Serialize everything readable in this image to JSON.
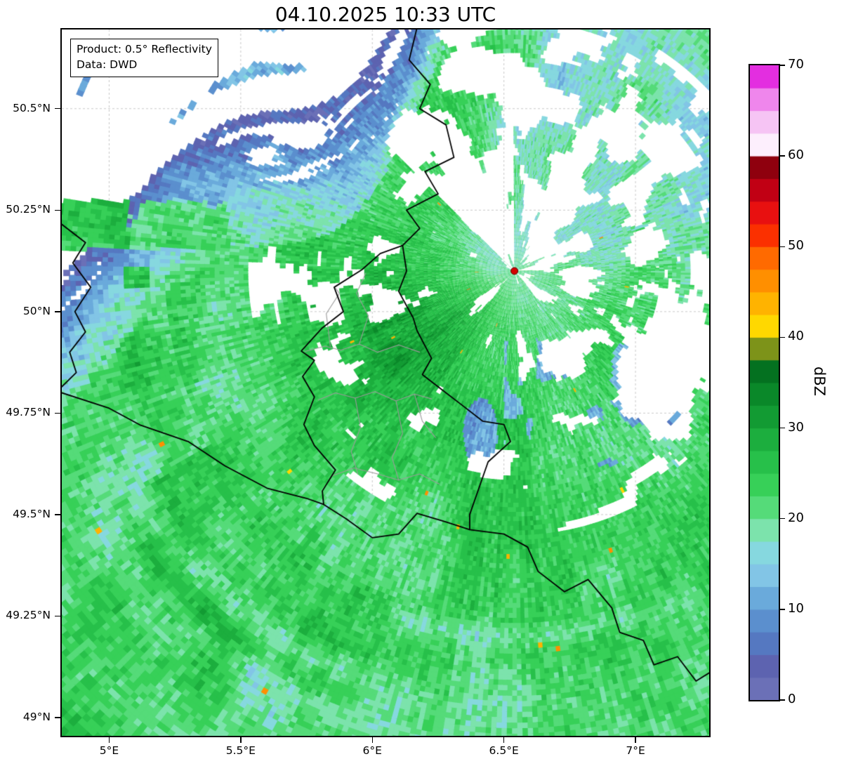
{
  "title": "04.10.2025 10:33 UTC",
  "annotation": {
    "product": "Product: 0.5° Reflectivity",
    "source": "Data: DWD"
  },
  "axes": {
    "lat_ticks": [
      {
        "label": "50.5°N",
        "deg": 50.5
      },
      {
        "label": "50.25°N",
        "deg": 50.25
      },
      {
        "label": "50°N",
        "deg": 50.0
      },
      {
        "label": "49.75°N",
        "deg": 49.75
      },
      {
        "label": "49.5°N",
        "deg": 49.5
      },
      {
        "label": "49.25°N",
        "deg": 49.25
      },
      {
        "label": "49°N",
        "deg": 49.0
      }
    ],
    "lon_ticks": [
      {
        "label": "5°E",
        "deg": 5.0
      },
      {
        "label": "5.5°E",
        "deg": 5.5
      },
      {
        "label": "6°E",
        "deg": 6.0
      },
      {
        "label": "6.5°E",
        "deg": 6.5
      },
      {
        "label": "7°E",
        "deg": 7.0
      }
    ],
    "extent": {
      "lon_min": 4.82,
      "lon_max": 7.28,
      "lat_min": 48.955,
      "lat_max": 50.695
    }
  },
  "colorbar": {
    "label": "dBZ",
    "unit_min": 0,
    "unit_max": 70,
    "step": 2.5,
    "tick_values": [
      0,
      10,
      20,
      30,
      40,
      50,
      60,
      70
    ],
    "colors": [
      "#6b70b7",
      "#5d63b0",
      "#5578c1",
      "#5b8fce",
      "#6aaadb",
      "#82c5e6",
      "#86d8df",
      "#7ce3ac",
      "#55db79",
      "#37d058",
      "#27c04a",
      "#1cae3e",
      "#129b33",
      "#0a8829",
      "#047120",
      "#7d9319",
      "#ffd800",
      "#ffb300",
      "#ff8f00",
      "#ff6a00",
      "#fb3000",
      "#e81010",
      "#c10014",
      "#8f000e",
      "#fdeffd",
      "#f6c4f4",
      "#ef86ec",
      "#e32ee0"
    ]
  },
  "radar_site": {
    "lon": 6.54,
    "lat": 50.1,
    "marker_color": "#d40000"
  },
  "map": {
    "background": "#ffffff",
    "grid_color": "#c9c9c9",
    "border_color": "#000000",
    "district_color": "#9a9a9a",
    "country_borders": [
      [
        [
          6.17,
          50.7
        ],
        [
          6.14,
          50.62
        ],
        [
          6.22,
          50.56
        ],
        [
          6.18,
          50.5
        ],
        [
          6.28,
          50.46
        ],
        [
          6.31,
          50.38
        ],
        [
          6.2,
          50.345
        ],
        [
          6.25,
          50.29
        ],
        [
          6.13,
          50.25
        ],
        [
          6.18,
          50.205
        ],
        [
          6.115,
          50.163
        ]
      ],
      [
        [
          6.115,
          50.163
        ],
        [
          6.13,
          50.1
        ],
        [
          6.1,
          50.05
        ],
        [
          6.155,
          49.985
        ],
        [
          6.17,
          49.953
        ],
        [
          6.225,
          49.885
        ],
        [
          6.19,
          49.845
        ],
        [
          6.26,
          49.81
        ],
        [
          6.33,
          49.775
        ],
        [
          6.42,
          49.73
        ],
        [
          6.5,
          49.722
        ],
        [
          6.525,
          49.68
        ],
        [
          6.44,
          49.63
        ],
        [
          6.405,
          49.565
        ],
        [
          6.37,
          49.5
        ],
        [
          6.37,
          49.463
        ],
        [
          6.28,
          49.482
        ],
        [
          6.17,
          49.503
        ],
        [
          6.1,
          49.452
        ],
        [
          6.0,
          49.443
        ],
        [
          5.9,
          49.49
        ],
        [
          5.815,
          49.525
        ],
        [
          5.81,
          49.558
        ],
        [
          5.86,
          49.61
        ],
        [
          5.78,
          49.67
        ],
        [
          5.74,
          49.722
        ],
        [
          5.78,
          49.79
        ],
        [
          5.735,
          49.84
        ],
        [
          5.78,
          49.88
        ],
        [
          5.73,
          49.903
        ],
        [
          5.81,
          49.96
        ],
        [
          5.89,
          50.0
        ],
        [
          5.855,
          50.06
        ],
        [
          5.96,
          50.103
        ],
        [
          6.03,
          50.143
        ],
        [
          6.115,
          50.163
        ]
      ],
      [
        [
          4.82,
          49.8
        ],
        [
          5.0,
          49.762
        ],
        [
          5.12,
          49.72
        ],
        [
          5.3,
          49.68
        ],
        [
          5.44,
          49.62
        ],
        [
          5.6,
          49.565
        ],
        [
          5.75,
          49.54
        ],
        [
          5.815,
          49.525
        ]
      ],
      [
        [
          6.37,
          49.463
        ],
        [
          6.5,
          49.452
        ],
        [
          6.59,
          49.42
        ],
        [
          6.63,
          49.36
        ],
        [
          6.73,
          49.31
        ],
        [
          6.82,
          49.34
        ],
        [
          6.91,
          49.27
        ],
        [
          6.94,
          49.21
        ],
        [
          7.03,
          49.19
        ],
        [
          7.07,
          49.13
        ],
        [
          7.16,
          49.15
        ],
        [
          7.23,
          49.09
        ],
        [
          7.28,
          49.11
        ]
      ],
      [
        [
          4.82,
          50.215
        ],
        [
          4.91,
          50.17
        ],
        [
          4.862,
          50.12
        ],
        [
          4.93,
          50.06
        ],
        [
          4.87,
          50.0
        ],
        [
          4.91,
          49.95
        ],
        [
          4.85,
          49.9
        ],
        [
          4.875,
          49.85
        ],
        [
          4.82,
          49.815
        ]
      ]
    ],
    "district_borders": [
      [
        [
          5.745,
          49.902
        ],
        [
          5.82,
          49.915
        ],
        [
          5.88,
          49.905
        ],
        [
          5.95,
          49.92
        ],
        [
          6.02,
          49.9
        ],
        [
          6.1,
          49.918
        ],
        [
          6.18,
          49.9
        ]
      ],
      [
        [
          5.95,
          49.92
        ],
        [
          5.985,
          49.99
        ],
        [
          5.94,
          50.045
        ],
        [
          5.975,
          50.095
        ]
      ],
      [
        [
          5.84,
          49.915
        ],
        [
          5.825,
          49.995
        ],
        [
          5.875,
          50.045
        ],
        [
          5.86,
          50.058
        ]
      ],
      [
        [
          5.795,
          49.782
        ],
        [
          5.86,
          49.8
        ],
        [
          5.935,
          49.787
        ],
        [
          6.01,
          49.803
        ],
        [
          6.09,
          49.78
        ],
        [
          6.16,
          49.797
        ],
        [
          6.225,
          49.785
        ]
      ],
      [
        [
          5.935,
          49.787
        ],
        [
          5.955,
          49.715
        ],
        [
          5.92,
          49.655
        ],
        [
          5.945,
          49.6
        ]
      ],
      [
        [
          6.09,
          49.78
        ],
        [
          6.115,
          49.7
        ],
        [
          6.075,
          49.64
        ],
        [
          6.1,
          49.585
        ]
      ],
      [
        [
          5.845,
          49.595
        ],
        [
          5.93,
          49.615
        ],
        [
          6.02,
          49.6
        ],
        [
          6.1,
          49.585
        ],
        [
          6.18,
          49.6
        ],
        [
          6.255,
          49.575
        ]
      ],
      [
        [
          6.16,
          49.797
        ],
        [
          6.19,
          49.73
        ],
        [
          6.24,
          49.69
        ]
      ]
    ]
  }
}
